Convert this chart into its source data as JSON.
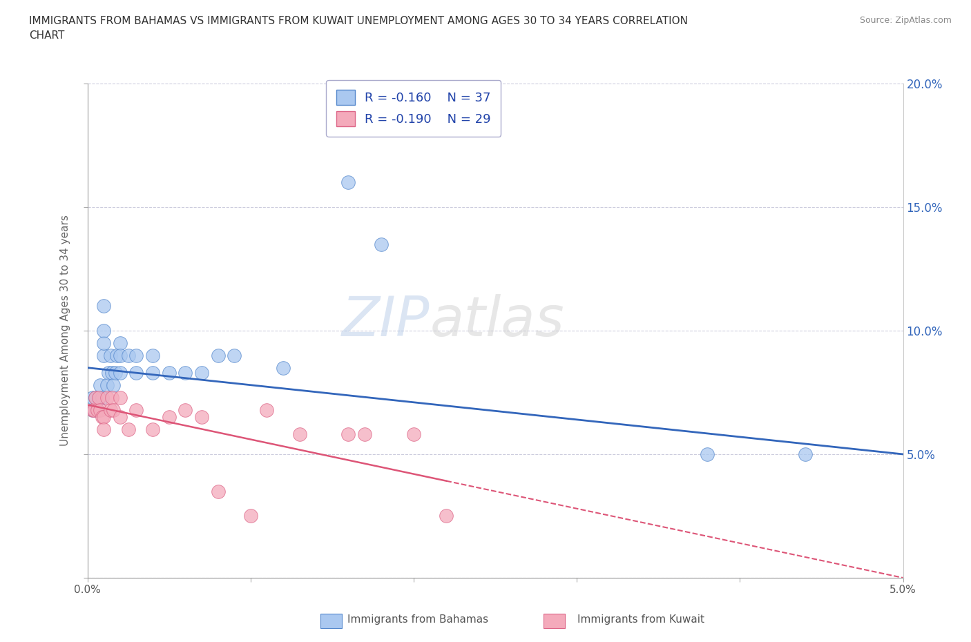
{
  "title": "IMMIGRANTS FROM BAHAMAS VS IMMIGRANTS FROM KUWAIT UNEMPLOYMENT AMONG AGES 30 TO 34 YEARS CORRELATION\nCHART",
  "source": "Source: ZipAtlas.com",
  "ylabel": "Unemployment Among Ages 30 to 34 years",
  "xlim": [
    0.0,
    0.05
  ],
  "ylim": [
    0.0,
    0.2
  ],
  "xtick_positions": [
    0.0,
    0.01,
    0.02,
    0.03,
    0.04,
    0.05
  ],
  "xtick_labels": [
    "0.0%",
    "",
    "",
    "",
    "",
    "5.0%"
  ],
  "ytick_positions": [
    0.0,
    0.05,
    0.1,
    0.15,
    0.2
  ],
  "ytick_labels_left": [
    "",
    "",
    "",
    "",
    ""
  ],
  "ytick_labels_right": [
    "",
    "5.0%",
    "10.0%",
    "15.0%",
    "20.0%"
  ],
  "watermark_text": "ZIPatlas",
  "legend1_label": "R = -0.160    N = 37",
  "legend2_label": "R = -0.190    N = 29",
  "bahamas_color": "#aac8f0",
  "kuwait_color": "#f4aabb",
  "bahamas_edge_color": "#5588cc",
  "kuwait_edge_color": "#dd6688",
  "bahamas_line_color": "#3366bb",
  "kuwait_line_color": "#dd5577",
  "background_color": "#ffffff",
  "grid_color": "#ccccdd",
  "bahamas_x": [
    0.0003,
    0.0003,
    0.0004,
    0.0005,
    0.0006,
    0.0007,
    0.0008,
    0.0009,
    0.001,
    0.001,
    0.001,
    0.001,
    0.0012,
    0.0013,
    0.0014,
    0.0015,
    0.0016,
    0.0017,
    0.0018,
    0.002,
    0.002,
    0.002,
    0.0025,
    0.003,
    0.003,
    0.004,
    0.004,
    0.005,
    0.006,
    0.007,
    0.008,
    0.009,
    0.012,
    0.016,
    0.018,
    0.038,
    0.044
  ],
  "bahamas_y": [
    0.068,
    0.073,
    0.068,
    0.073,
    0.068,
    0.073,
    0.078,
    0.073,
    0.09,
    0.095,
    0.1,
    0.11,
    0.078,
    0.083,
    0.09,
    0.083,
    0.078,
    0.083,
    0.09,
    0.095,
    0.09,
    0.083,
    0.09,
    0.083,
    0.09,
    0.083,
    0.09,
    0.083,
    0.083,
    0.083,
    0.09,
    0.09,
    0.085,
    0.16,
    0.135,
    0.05,
    0.05
  ],
  "kuwait_x": [
    0.0003,
    0.0004,
    0.0005,
    0.0006,
    0.0007,
    0.0008,
    0.0009,
    0.001,
    0.001,
    0.0012,
    0.0014,
    0.0015,
    0.0016,
    0.002,
    0.002,
    0.0025,
    0.003,
    0.004,
    0.005,
    0.006,
    0.007,
    0.008,
    0.01,
    0.011,
    0.013,
    0.016,
    0.017,
    0.02,
    0.022
  ],
  "kuwait_y": [
    0.068,
    0.068,
    0.073,
    0.068,
    0.073,
    0.068,
    0.065,
    0.065,
    0.06,
    0.073,
    0.068,
    0.073,
    0.068,
    0.073,
    0.065,
    0.06,
    0.068,
    0.06,
    0.065,
    0.068,
    0.065,
    0.035,
    0.025,
    0.068,
    0.058,
    0.058,
    0.058,
    0.058,
    0.025
  ]
}
